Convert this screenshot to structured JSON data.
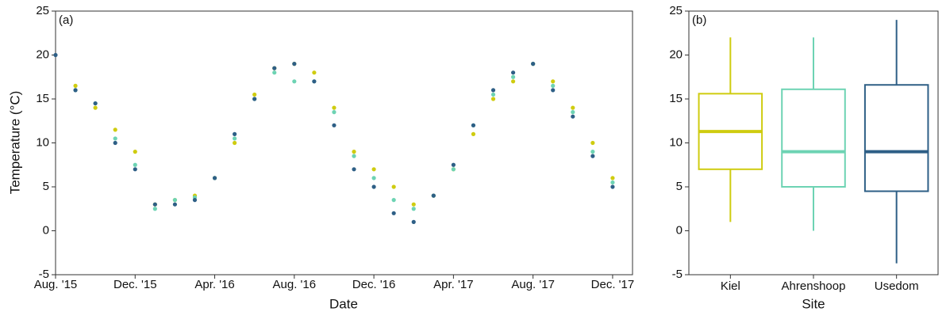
{
  "chart_data": [
    {
      "type": "scatter",
      "label": "(a)",
      "x_label": "Date",
      "y_label": "Temperature (°C)",
      "x": [
        "2015-08",
        "2015-09",
        "2015-10",
        "2015-11",
        "2015-12",
        "2016-01",
        "2016-02",
        "2016-03",
        "2016-04",
        "2016-05",
        "2016-06",
        "2016-07",
        "2016-08",
        "2016-09",
        "2016-10",
        "2016-11",
        "2016-12",
        "2017-01",
        "2017-02",
        "2017-03",
        "2017-04",
        "2017-05",
        "2017-06",
        "2017-07",
        "2017-08",
        "2017-09",
        "2017-10",
        "2017-11",
        "2017-12"
      ],
      "series": [
        {
          "name": "Kiel",
          "color": "#cfcc10",
          "values": [
            null,
            16.5,
            14,
            11.5,
            9,
            3,
            3.5,
            4,
            6,
            10,
            15.5,
            18.5,
            19,
            18,
            14,
            9,
            7,
            5,
            3,
            4,
            7,
            11,
            15,
            17,
            19,
            17,
            14,
            10,
            6
          ]
        },
        {
          "name": "Ahrenshoop",
          "color": "#6dd3b3",
          "values": [
            null,
            16,
            14.5,
            10.5,
            7.5,
            2.5,
            3.5,
            3.8,
            6,
            10.5,
            15,
            18,
            17,
            17,
            13.5,
            8.5,
            6,
            3.5,
            2.5,
            4,
            7,
            12,
            15.5,
            17.5,
            19,
            16.5,
            13.5,
            9,
            5.5
          ]
        },
        {
          "name": "Usedom",
          "color": "#2e5f86",
          "values": [
            20,
            16,
            14.5,
            10,
            7,
            3,
            3,
            3.5,
            6,
            11,
            15,
            18.5,
            19,
            17,
            12,
            7,
            5,
            2,
            1,
            4,
            7.5,
            12,
            16,
            18,
            19,
            16,
            13,
            8.5,
            5
          ]
        }
      ],
      "xlim": [
        "2015-08",
        "2018-01"
      ],
      "xticks": [
        {
          "value": "2015-08",
          "label": "Aug. '15"
        },
        {
          "value": "2015-12",
          "label": "Dec. '15"
        },
        {
          "value": "2016-04",
          "label": "Apr. '16"
        },
        {
          "value": "2016-08",
          "label": "Aug. '16"
        },
        {
          "value": "2016-12",
          "label": "Dec. '16"
        },
        {
          "value": "2017-04",
          "label": "Apr. '17"
        },
        {
          "value": "2017-08",
          "label": "Aug. '17"
        },
        {
          "value": "2017-12",
          "label": "Dec. '17"
        }
      ],
      "ylim": [
        -5,
        25
      ],
      "yticks": [
        -5,
        0,
        5,
        10,
        15,
        20,
        25
      ]
    },
    {
      "type": "box",
      "label": "(b)",
      "x_label": "Site",
      "categories": [
        "Kiel",
        "Ahrenshoop",
        "Usedom"
      ],
      "colors": [
        "#cfcc10",
        "#6dd3b3",
        "#2e5f86"
      ],
      "min": [
        1,
        0,
        -3.7
      ],
      "q1": [
        7,
        5,
        4.5
      ],
      "median": [
        11.3,
        9,
        9
      ],
      "q3": [
        15.6,
        16.1,
        16.6
      ],
      "max": [
        22,
        22,
        24
      ],
      "ylim": [
        -5,
        25
      ],
      "yticks": [
        -5,
        0,
        5,
        10,
        15,
        20,
        25
      ]
    }
  ]
}
